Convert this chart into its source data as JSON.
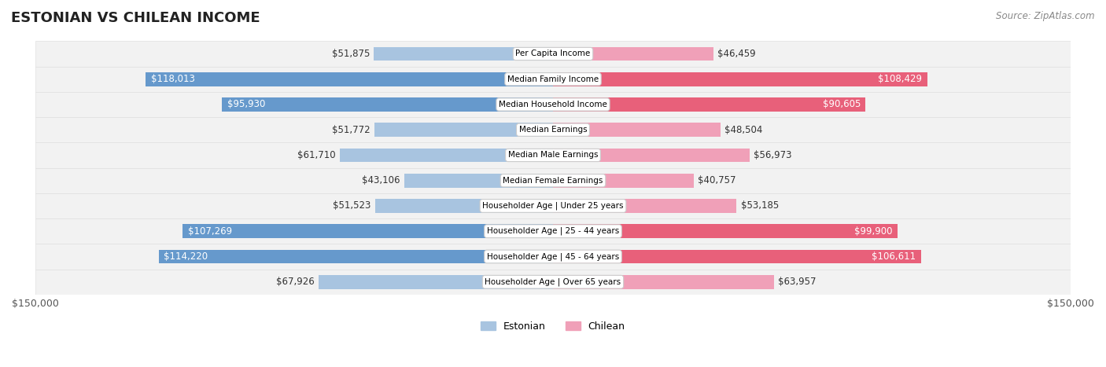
{
  "title": "ESTONIAN VS CHILEAN INCOME",
  "source": "Source: ZipAtlas.com",
  "categories": [
    "Per Capita Income",
    "Median Family Income",
    "Median Household Income",
    "Median Earnings",
    "Median Male Earnings",
    "Median Female Earnings",
    "Householder Age | Under 25 years",
    "Householder Age | 25 - 44 years",
    "Householder Age | 45 - 64 years",
    "Householder Age | Over 65 years"
  ],
  "estonian_values": [
    51875,
    118013,
    95930,
    51772,
    61710,
    43106,
    51523,
    107269,
    114220,
    67926
  ],
  "chilean_values": [
    46459,
    108429,
    90605,
    48504,
    56973,
    40757,
    53185,
    99900,
    106611,
    63957
  ],
  "estonian_labels": [
    "$51,875",
    "$118,013",
    "$95,930",
    "$51,772",
    "$61,710",
    "$43,106",
    "$51,523",
    "$107,269",
    "$114,220",
    "$67,926"
  ],
  "chilean_labels": [
    "$46,459",
    "$108,429",
    "$90,605",
    "$48,504",
    "$56,973",
    "$40,757",
    "$53,185",
    "$99,900",
    "$106,611",
    "$63,957"
  ],
  "max_value": 150000,
  "estonian_bar_color_low": "#a8c4e0",
  "estonian_bar_color_high": "#6699cc",
  "chilean_bar_color_low": "#f0a0b8",
  "chilean_bar_color_high": "#e8607a",
  "threshold": 80000,
  "background_color": "#ffffff",
  "row_bg_color": "#f0f0f0",
  "label_box_color": "#ffffff",
  "title_fontsize": 13,
  "axis_label_fontsize": 9,
  "bar_label_fontsize": 8.5,
  "legend_fontsize": 9,
  "source_fontsize": 8.5
}
